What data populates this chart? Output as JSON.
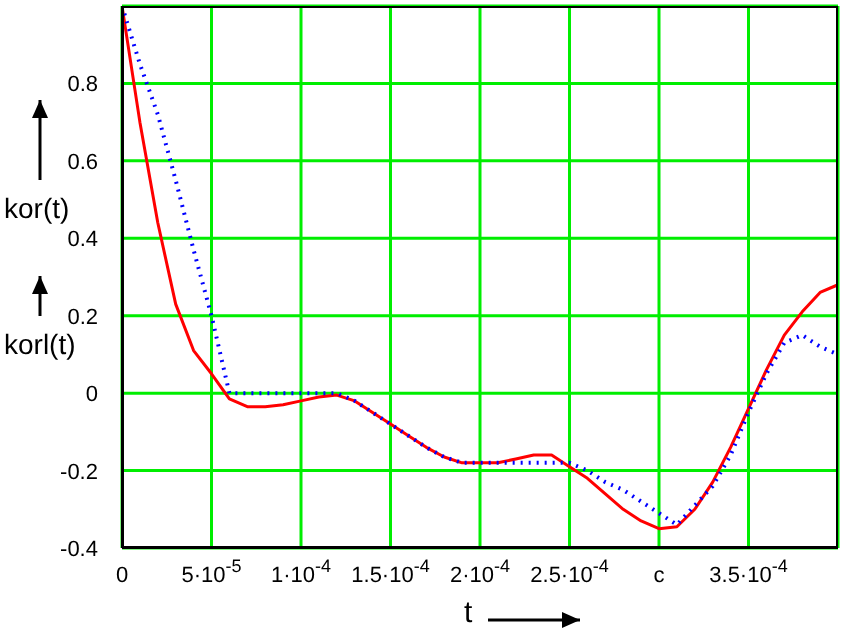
{
  "chart_data": {
    "type": "line",
    "xlabel": "t",
    "ylabel": "kor(t)",
    "annotations": [
      "korl(t)"
    ],
    "x": [
      0,
      1e-05,
      2e-05,
      3e-05,
      4e-05,
      5e-05,
      6e-05,
      7e-05,
      8e-05,
      9e-05,
      0.0001,
      0.00011,
      0.00012,
      0.00013,
      0.00014,
      0.00015,
      0.00016,
      0.00017,
      0.00018,
      0.00019,
      0.0002,
      0.00021,
      0.00022,
      0.00023,
      0.00024,
      0.00025,
      0.00026,
      0.00027,
      0.00028,
      0.00029,
      0.0003,
      0.00031,
      0.00032,
      0.00033,
      0.00034,
      0.00035,
      0.00036,
      0.00037,
      0.00038,
      0.00039,
      0.0004
    ],
    "series": [
      {
        "color": "#ff0000",
        "line_style": "solid",
        "values": [
          1.0,
          0.7,
          0.44,
          0.23,
          0.11,
          0.05,
          -0.015,
          -0.035,
          -0.035,
          -0.03,
          -0.02,
          -0.01,
          -0.005,
          -0.02,
          -0.05,
          -0.08,
          -0.11,
          -0.14,
          -0.165,
          -0.18,
          -0.18,
          -0.18,
          -0.17,
          -0.16,
          -0.16,
          -0.19,
          -0.22,
          -0.26,
          -0.3,
          -0.33,
          -0.35,
          -0.345,
          -0.3,
          -0.23,
          -0.14,
          -0.04,
          0.06,
          0.15,
          0.21,
          0.26,
          0.28
        ]
      },
      {
        "color": "#0000ff",
        "line_style": "dotted",
        "values": [
          1.0,
          0.85,
          0.72,
          0.55,
          0.37,
          0.2,
          0.0,
          0.0,
          0.0,
          0.0,
          0.0,
          0.0,
          0.0,
          -0.02,
          -0.05,
          -0.08,
          -0.11,
          -0.14,
          -0.165,
          -0.18,
          -0.18,
          -0.18,
          -0.18,
          -0.18,
          -0.18,
          -0.18,
          -0.2,
          -0.23,
          -0.25,
          -0.28,
          -0.31,
          -0.34,
          -0.29,
          -0.24,
          -0.16,
          -0.05,
          0.05,
          0.13,
          0.15,
          0.12,
          0.1
        ]
      }
    ],
    "xlim": [
      0,
      0.0004
    ],
    "xticks": [
      0,
      {
        "value": 5e-05,
        "label": "5·10$^{-5}$"
      },
      {
        "value": 0.0001,
        "label": "1·10$^{-4}$"
      },
      {
        "value": 0.00015,
        "label": "1.5·10$^{-4}$"
      },
      {
        "value": 0.0002,
        "label": "2·10$^{-4}$"
      },
      {
        "value": 0.00025,
        "label": "2.5·10$^{-4}$"
      },
      {
        "value": 0.0003,
        "label": "c"
      },
      {
        "value": 0.00035,
        "label": "3.5·10$^{-4}$"
      }
    ],
    "ylim": [
      -0.4,
      1
    ],
    "yticks": [
      -0.4,
      -0.2,
      0,
      0.2,
      0.4,
      0.6,
      0.8
    ],
    "grid": true,
    "marker": "none"
  }
}
